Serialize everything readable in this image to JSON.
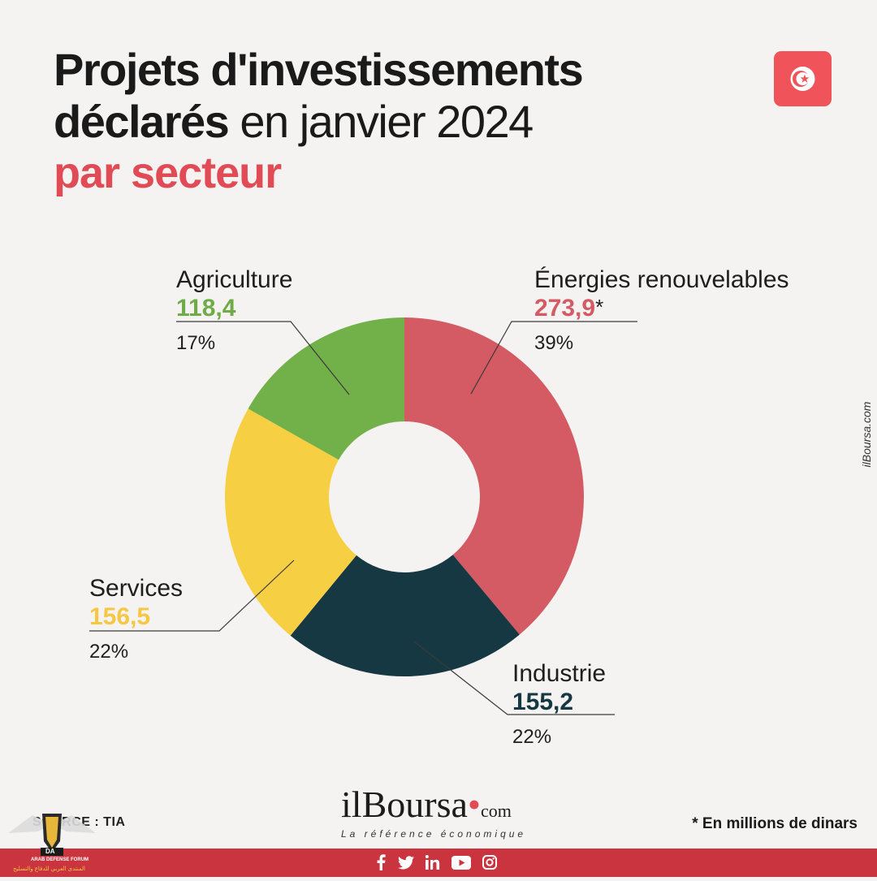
{
  "header": {
    "title_line1": "Projets d'investissements",
    "title_line2_bold": "déclarés",
    "title_line2_regular": "en janvier 2024",
    "title_line3": "par secteur"
  },
  "flag_icon": "tunisia-flag-icon",
  "chart_data": {
    "type": "pie",
    "donut": true,
    "unit_note": "* En millions de dinars",
    "start_angle_deg": 0,
    "direction": "clockwise",
    "categories": [
      "Énergies renouvelables",
      "Industrie",
      "Services",
      "Agriculture"
    ],
    "values": [
      273.9,
      155.2,
      156.5,
      118.4
    ],
    "value_labels": [
      "273,9",
      "155,2",
      "156,5",
      "118,4"
    ],
    "percent_labels": [
      "39%",
      "22%",
      "22%",
      "17%"
    ],
    "asterisk": "*",
    "colors": [
      "#d45a63",
      "#163843",
      "#f7cf43",
      "#72b04a"
    ],
    "label_colors": [
      "#d45a63",
      "#163843",
      "#f5c742",
      "#6fab47"
    ]
  },
  "side_credit": "ilBoursa.com",
  "footer": {
    "source": "SOURCE : TIA",
    "brand_il": "il",
    "brand_name": "Boursa",
    "brand_dot": "•",
    "brand_com": "com",
    "tagline": "La référence économique",
    "note": "* En millions de dinars",
    "bar_color": "#c9343e",
    "social_icons": [
      "facebook-icon",
      "twitter-icon",
      "linkedin-icon",
      "youtube-icon",
      "instagram-icon"
    ]
  },
  "watermark": {
    "badge": "DA",
    "line1": "ARAB DEFENSE FORUM",
    "line2": "المنتدى العربي للدفاع والتسليح"
  }
}
